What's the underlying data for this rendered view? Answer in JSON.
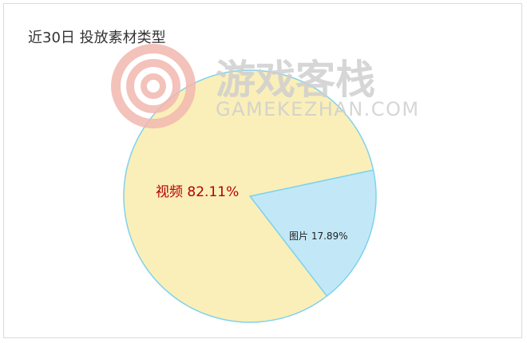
{
  "page": {
    "title": "近30日 投放素材类型"
  },
  "watermark": {
    "cn": "游戏客栈",
    "en": "GAMEKEZHAN.COM",
    "logo_color": "#f2b8b0",
    "text_color": "#cfcfcf"
  },
  "chart_data": {
    "type": "pie",
    "title": "近30日 投放素材类型",
    "slices": [
      {
        "label": "视频",
        "value": 82.11,
        "display": "视频 82.11%",
        "color": "#faefb8",
        "label_color": "#b40000"
      },
      {
        "label": "图片",
        "value": 17.89,
        "display": "图片 17.89%",
        "color": "#c2e8f7",
        "label_color": "#222222"
      }
    ],
    "edge_color": "#7fd2ee",
    "legend": "none"
  }
}
